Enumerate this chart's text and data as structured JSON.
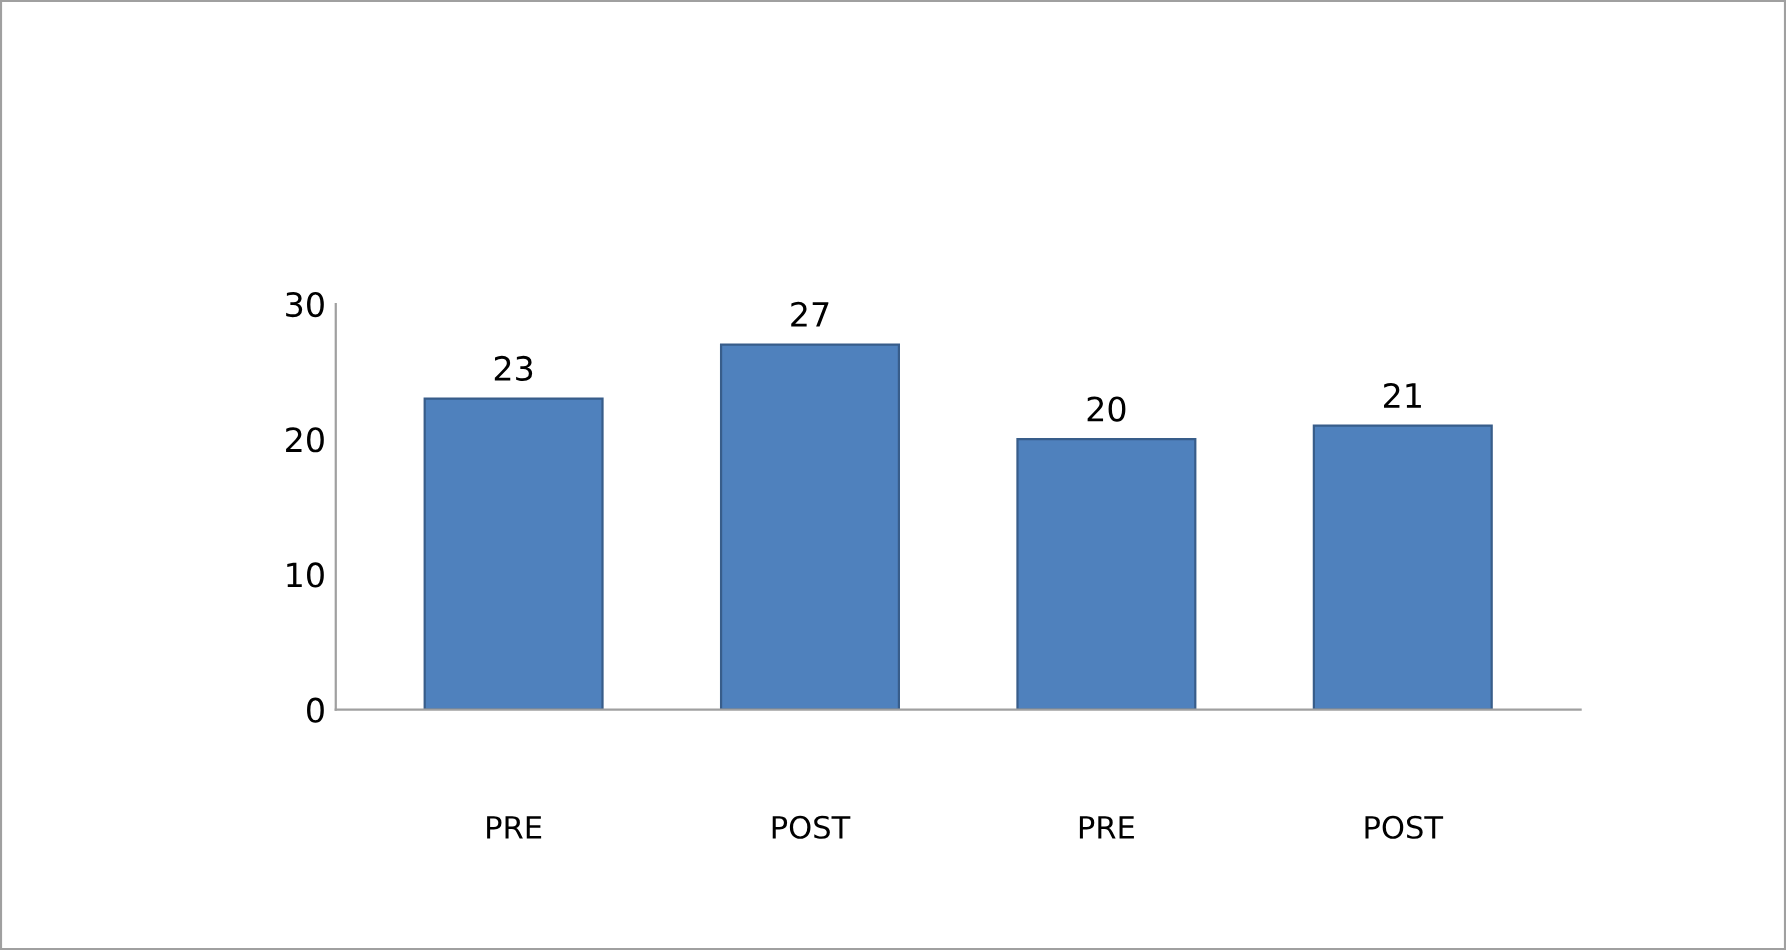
{
  "chart_data": {
    "type": "bar",
    "categories": [
      "PRE",
      "POST",
      "PRE",
      "POST"
    ],
    "values": [
      23,
      27,
      20,
      21
    ],
    "color": "#4f81bd",
    "ylim": [
      0,
      30
    ],
    "yticks": [
      0,
      10,
      20,
      30
    ],
    "grid": false,
    "data_labels": true
  }
}
